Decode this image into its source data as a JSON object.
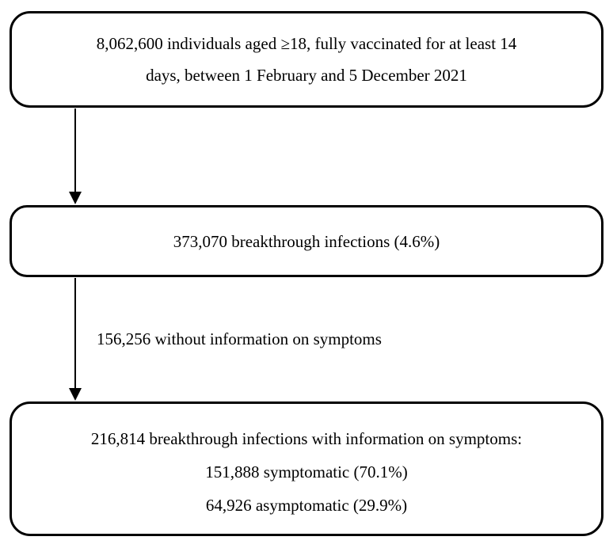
{
  "diagram": {
    "type": "flowchart",
    "colors": {
      "stroke": "#000000",
      "text": "#000000",
      "background": "#ffffff"
    },
    "boxes": [
      {
        "id": "population",
        "lines": [
          "8,062,600 individuals aged ≥18, fully vaccinated for at least 14",
          "days, between 1 February and 5 December 2021"
        ]
      },
      {
        "id": "breakthrough-infections",
        "lines": [
          "373,070 breakthrough infections (4.6%)"
        ]
      },
      {
        "id": "symptom-information",
        "lines": [
          "216,814 breakthrough infections with information on symptoms:",
          "151,888 symptomatic (70.1%)",
          "64,926 asymptomatic (29.9%)"
        ]
      }
    ],
    "edge_labels": [
      "156,256 without information on symptoms"
    ]
  }
}
